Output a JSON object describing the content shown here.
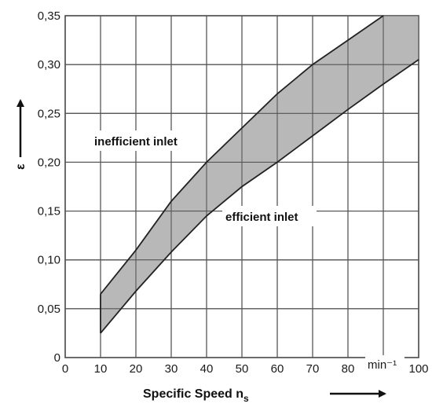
{
  "chart_data": {
    "type": "area",
    "title": "",
    "xlabel": "Specific Speed n",
    "xlabel_subscript": "s",
    "ylabel": "ε",
    "unit_label": "min⁻¹",
    "xlim": [
      0,
      100
    ],
    "ylim": [
      0,
      0.35
    ],
    "x_ticks": [
      0,
      10,
      20,
      30,
      40,
      50,
      60,
      70,
      80,
      100
    ],
    "x_tick_labels": [
      "0",
      "10",
      "20",
      "30",
      "40",
      "50",
      "60",
      "70",
      "80",
      "100"
    ],
    "y_ticks": [
      0,
      0.05,
      0.1,
      0.15,
      0.2,
      0.25,
      0.3,
      0.35
    ],
    "y_tick_labels": [
      "0",
      "0,05",
      "0,10",
      "0,15",
      "0,20",
      "0,25",
      "0,30",
      "0,35"
    ],
    "grid": true,
    "series": [
      {
        "name": "inefficient inlet",
        "x": [
          10,
          20,
          30,
          40,
          50,
          60,
          70,
          80,
          90
        ],
        "y": [
          0.065,
          0.11,
          0.16,
          0.2,
          0.235,
          0.27,
          0.3,
          0.325,
          0.35
        ]
      },
      {
        "name": "efficient inlet",
        "x": [
          10,
          20,
          30,
          40,
          50,
          60,
          70,
          80,
          90,
          100
        ],
        "y": [
          0.025,
          0.068,
          0.108,
          0.145,
          0.175,
          0.2,
          0.227,
          0.254,
          0.28,
          0.305
        ]
      }
    ],
    "band_color": "#b8b8b8"
  }
}
